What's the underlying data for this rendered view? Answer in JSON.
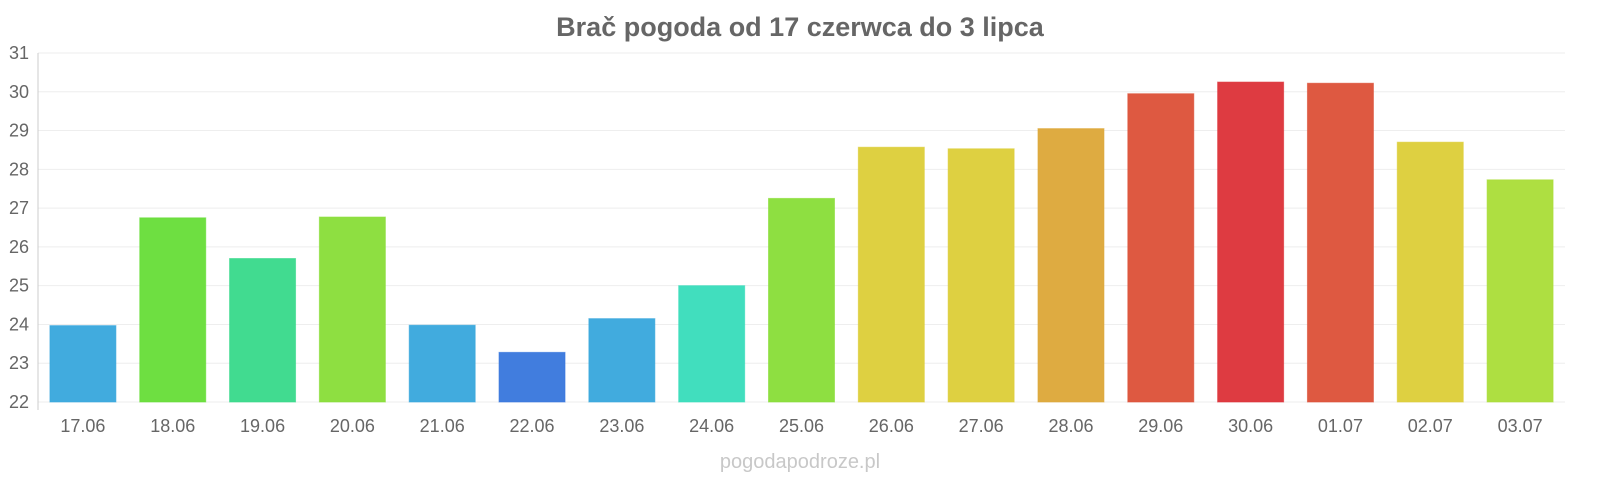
{
  "chart_data": {
    "type": "bar",
    "title": "Brač pogoda od 17 czerwca do 3 lipca",
    "xlabel": "",
    "ylabel": "",
    "ylim": [
      22,
      31
    ],
    "yticks": [
      22,
      23,
      24,
      25,
      26,
      27,
      28,
      29,
      30,
      31
    ],
    "grid": true,
    "legend": "none",
    "categories": [
      "17.06",
      "18.06",
      "19.06",
      "20.06",
      "21.06",
      "22.06",
      "23.06",
      "24.06",
      "25.06",
      "26.06",
      "27.06",
      "28.06",
      "29.06",
      "30.06",
      "01.07",
      "02.07",
      "03.07"
    ],
    "values": [
      23.97,
      26.75,
      25.7,
      26.77,
      23.98,
      23.28,
      24.15,
      25.0,
      27.25,
      28.57,
      28.53,
      29.05,
      29.95,
      30.25,
      30.22,
      28.7,
      27.73
    ],
    "colors": [
      "#37a6dc",
      "#66dd37",
      "#37d98a",
      "#88dd37",
      "#37a6dc",
      "#3776dc",
      "#37a6dc",
      "#37dcba",
      "#88dd37",
      "#dccd37",
      "#dccd37",
      "#dca737",
      "#dc5037",
      "#dc3037",
      "#dc5037",
      "#dccd37",
      "#aadd37"
    ]
  },
  "watermark": "pogodapodroze.pl"
}
